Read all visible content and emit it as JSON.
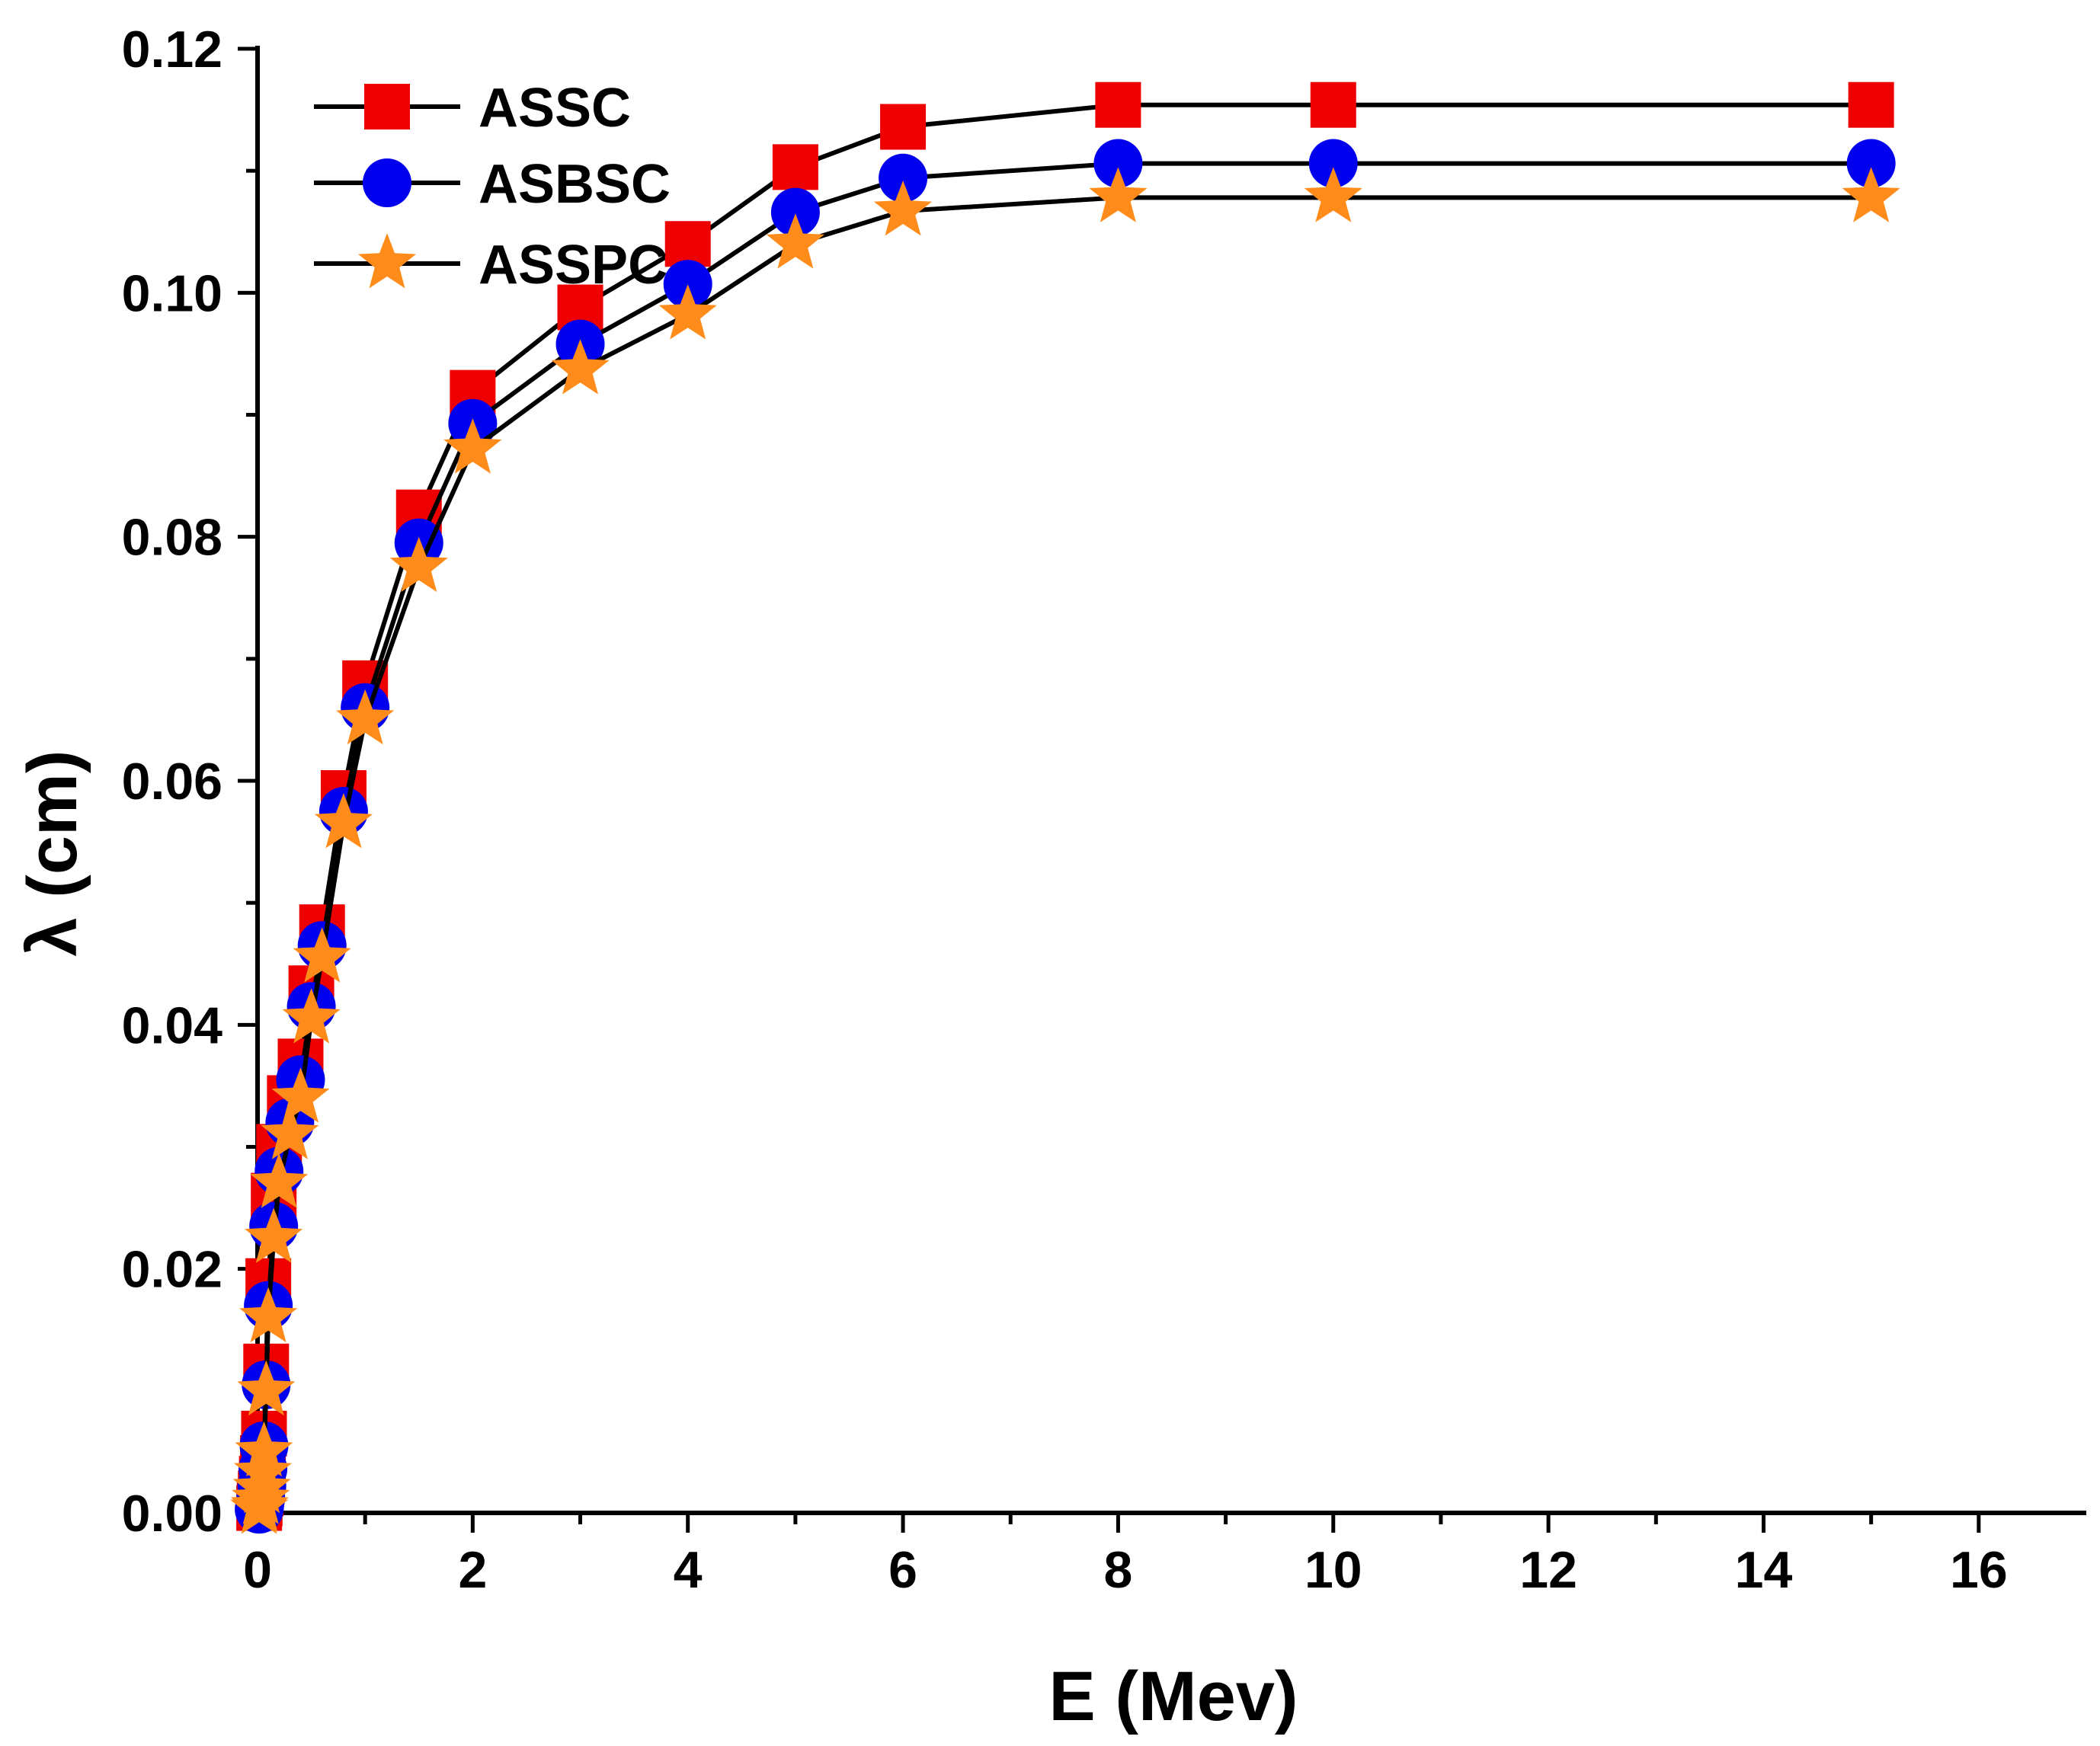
{
  "chart_data": {
    "type": "line",
    "title": "",
    "xlabel": "E (Mev)",
    "ylabel": "λ (cm)",
    "xlim": [
      0,
      17
    ],
    "ylim": [
      0,
      0.12
    ],
    "xticks": [
      0,
      2,
      4,
      6,
      8,
      10,
      12,
      14,
      16
    ],
    "xtick_labels": [
      "0",
      "2",
      "4",
      "6",
      "8",
      "10",
      "12",
      "14",
      "16"
    ],
    "yticks": [
      0,
      0.02,
      0.04,
      0.06,
      0.08,
      0.1,
      0.12
    ],
    "ytick_labels": [
      "0.00",
      "0.02",
      "0.04",
      "0.06",
      "0.08",
      "0.10",
      "0.12"
    ],
    "grid": false,
    "legend_position": "top-left",
    "x": [
      0.015,
      0.02,
      0.03,
      0.04,
      0.05,
      0.06,
      0.08,
      0.1,
      0.15,
      0.2,
      0.3,
      0.4,
      0.5,
      0.6,
      0.8,
      1,
      1.5,
      2,
      3,
      4,
      5,
      6,
      8,
      10,
      15
    ],
    "series": [
      {
        "name": "ASSC",
        "marker": "square",
        "color": "#ee0000",
        "values": [
          0.0004,
          0.0008,
          0.0016,
          0.0028,
          0.0045,
          0.0065,
          0.012,
          0.019,
          0.026,
          0.03,
          0.034,
          0.037,
          0.043,
          0.048,
          0.059,
          0.068,
          0.082,
          0.0918,
          0.0988,
          0.104,
          0.1103,
          0.1136,
          0.1154,
          0.1154,
          0.1154
        ]
      },
      {
        "name": "ASBSC",
        "marker": "circle",
        "color": "#0000ee",
        "values": [
          0.0003,
          0.0006,
          0.0012,
          0.0022,
          0.0036,
          0.0055,
          0.0105,
          0.017,
          0.0235,
          0.028,
          0.032,
          0.0355,
          0.0415,
          0.0465,
          0.0575,
          0.066,
          0.0795,
          0.0893,
          0.0958,
          0.1007,
          0.1066,
          0.1094,
          0.1106,
          0.1106,
          0.1106
        ]
      },
      {
        "name": "ASSPC",
        "marker": "star",
        "color": "#ff8c1a",
        "values": [
          0.0003,
          0.0005,
          0.0011,
          0.002,
          0.0033,
          0.005,
          0.01,
          0.016,
          0.0225,
          0.027,
          0.031,
          0.034,
          0.0405,
          0.0455,
          0.0565,
          0.065,
          0.0775,
          0.0872,
          0.0937,
          0.0982,
          0.104,
          0.1067,
          0.1078,
          0.1078,
          0.1078
        ]
      }
    ]
  }
}
